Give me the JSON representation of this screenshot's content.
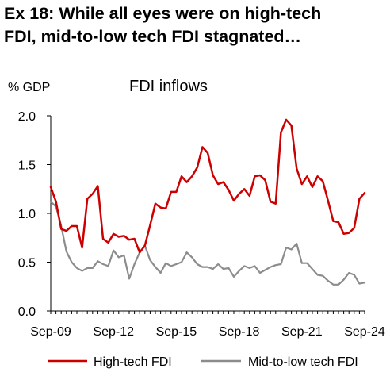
{
  "title_lines": [
    "Ex 18: While all eyes were on high-tech",
    "FDI, mid-to-low tech FDI stagnated…"
  ],
  "chart_data": {
    "type": "line",
    "title": "FDI inflows",
    "ylabel": "% GDP",
    "xlabel": "",
    "ylim": [
      0,
      2
    ],
    "yticks": [
      "0.0",
      "0.5",
      "1.0",
      "1.5",
      "2.0"
    ],
    "xticks": [
      "Sep-09",
      "Sep-12",
      "Sep-15",
      "Sep-18",
      "Sep-21",
      "Sep-24"
    ],
    "x_start": "Sep-09",
    "x_end": "Sep-24",
    "frequency": "quarterly",
    "grid": false,
    "legend_position": "bottom",
    "series": [
      {
        "name": "High-tech FDI",
        "color": "#cc0000",
        "values": [
          1.27,
          1.12,
          0.84,
          0.82,
          0.87,
          0.87,
          0.65,
          1.15,
          1.2,
          1.28,
          0.74,
          0.7,
          0.79,
          0.76,
          0.77,
          0.73,
          0.74,
          0.6,
          0.67,
          0.88,
          1.1,
          1.06,
          1.05,
          1.22,
          1.22,
          1.38,
          1.32,
          1.38,
          1.47,
          1.68,
          1.62,
          1.39,
          1.3,
          1.32,
          1.24,
          1.13,
          1.2,
          1.25,
          1.18,
          1.38,
          1.39,
          1.34,
          1.12,
          1.1,
          1.83,
          1.96,
          1.9,
          1.46,
          1.3,
          1.38,
          1.27,
          1.38,
          1.33,
          1.13,
          0.92,
          0.91,
          0.79,
          0.8,
          0.85,
          1.15,
          1.21
        ]
      },
      {
        "name": "Mid-to-low tech FDI",
        "color": "#8c8c8c",
        "values": [
          1.12,
          1.07,
          0.87,
          0.61,
          0.5,
          0.44,
          0.41,
          0.44,
          0.44,
          0.51,
          0.48,
          0.46,
          0.62,
          0.55,
          0.57,
          0.33,
          0.48,
          0.6,
          0.67,
          0.52,
          0.45,
          0.39,
          0.49,
          0.46,
          0.48,
          0.5,
          0.6,
          0.55,
          0.48,
          0.45,
          0.45,
          0.43,
          0.48,
          0.43,
          0.44,
          0.35,
          0.41,
          0.46,
          0.44,
          0.46,
          0.39,
          0.42,
          0.45,
          0.47,
          0.48,
          0.65,
          0.63,
          0.69,
          0.49,
          0.49,
          0.43,
          0.37,
          0.36,
          0.31,
          0.27,
          0.27,
          0.32,
          0.39,
          0.37,
          0.28,
          0.29
        ]
      }
    ]
  }
}
